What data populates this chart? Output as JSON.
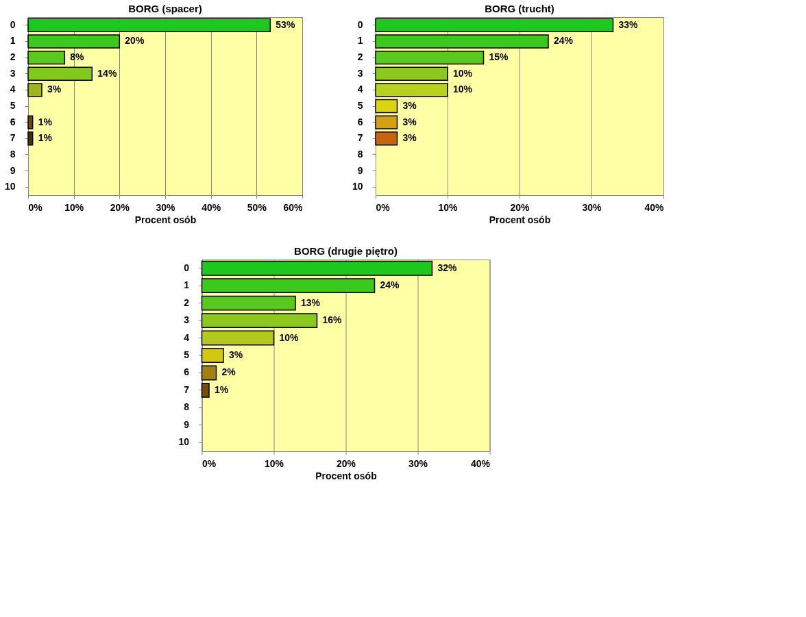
{
  "chart_data": [
    {
      "type": "bar",
      "orientation": "horizontal",
      "title": "BORG (spacer)",
      "xlabel": "Procent osób",
      "categories": [
        "0",
        "1",
        "2",
        "3",
        "4",
        "5",
        "6",
        "7",
        "8",
        "9",
        "10"
      ],
      "values": [
        53,
        20,
        8,
        14,
        3,
        null,
        1,
        1,
        null,
        null,
        null
      ],
      "value_labels": [
        "53%",
        "20%",
        "8%",
        "14%",
        "3%",
        null,
        "1%",
        "1%",
        null,
        null,
        null
      ],
      "colors": [
        "#1ec81e",
        "#3cc81e",
        "#5ac81e",
        "#82c81e",
        "#a0b41e",
        "#c8c814",
        "#6e4a10",
        "#4a3008",
        "#808080",
        "#808080",
        "#808080"
      ],
      "xlim": [
        0,
        60
      ],
      "xticks": [
        {
          "value": 0,
          "label": "0%"
        },
        {
          "value": 10,
          "label": "10%"
        },
        {
          "value": 20,
          "label": "20%"
        },
        {
          "value": 30,
          "label": "30%"
        },
        {
          "value": 40,
          "label": "40%"
        },
        {
          "value": 50,
          "label": "50%"
        },
        {
          "value": 60,
          "label": "60%"
        }
      ],
      "grid": "x"
    },
    {
      "type": "bar",
      "orientation": "horizontal",
      "title": "BORG (trucht)",
      "xlabel": "Procent osób",
      "categories": [
        "0",
        "1",
        "2",
        "3",
        "4",
        "5",
        "6",
        "7",
        "8",
        "9",
        "10"
      ],
      "values": [
        33,
        24,
        15,
        10,
        10,
        3,
        3,
        3,
        null,
        null,
        null
      ],
      "value_labels": [
        "33%",
        "24%",
        "15%",
        "10%",
        "10%",
        "3%",
        "3%",
        "3%",
        null,
        null,
        null
      ],
      "colors": [
        "#1ec81e",
        "#3cc81e",
        "#5ac81e",
        "#8cc81e",
        "#b4d21e",
        "#dcd214",
        "#d2a010",
        "#c8640f",
        "#808080",
        "#808080",
        "#808080"
      ],
      "xlim": [
        0,
        40
      ],
      "xticks": [
        {
          "value": 0,
          "label": "0%"
        },
        {
          "value": 10,
          "label": "10%"
        },
        {
          "value": 20,
          "label": "20%"
        },
        {
          "value": 30,
          "label": "30%"
        },
        {
          "value": 40,
          "label": "40%"
        }
      ],
      "grid": "x"
    },
    {
      "type": "bar",
      "orientation": "horizontal",
      "title": "BORG (drugie piętro)",
      "xlabel": "Procent osób",
      "categories": [
        "0",
        "1",
        "2",
        "3",
        "4",
        "5",
        "6",
        "7",
        "8",
        "9",
        "10"
      ],
      "values": [
        32,
        24,
        13,
        16,
        10,
        3,
        2,
        1,
        null,
        null,
        null
      ],
      "value_labels": [
        "32%",
        "24%",
        "13%",
        "16%",
        "10%",
        "3%",
        "2%",
        "1%",
        null,
        null,
        null
      ],
      "colors": [
        "#1ec81e",
        "#3cc81e",
        "#5ac81e",
        "#8cc81e",
        "#b4c81e",
        "#d2c814",
        "#a08010",
        "#7a4c0c",
        "#808080",
        "#808080",
        "#808080"
      ],
      "xlim": [
        0,
        40
      ],
      "xticks": [
        {
          "value": 0,
          "label": "0%"
        },
        {
          "value": 10,
          "label": "10%"
        },
        {
          "value": 20,
          "label": "20%"
        },
        {
          "value": 30,
          "label": "30%"
        },
        {
          "value": 40,
          "label": "40%"
        }
      ],
      "grid": "x"
    }
  ]
}
